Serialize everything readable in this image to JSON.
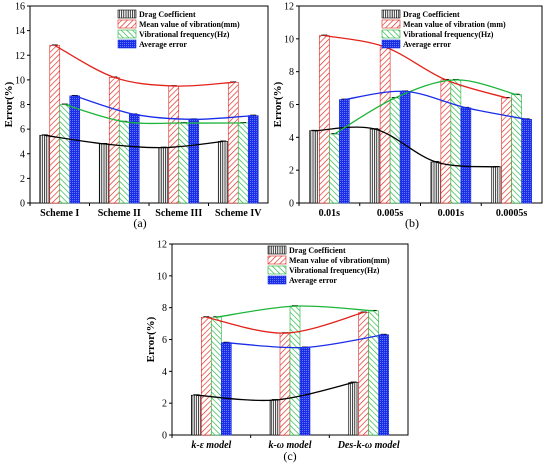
{
  "colors": {
    "drag": "#000000",
    "mean": "#e2231a",
    "freq": "#1db53a",
    "avg": "#1a2ee8",
    "drag_trend": "#000000",
    "mean_trend": "#e2231a",
    "freq_trend": "#1db53a",
    "avg_trend": "#1a2ee8"
  },
  "chart_data": [
    {
      "type": "bar",
      "panel": "a",
      "panel_label": "(a)",
      "ylabel": "Error(%)",
      "ylim": [
        0,
        16
      ],
      "yticks": [
        "0",
        "2",
        "4",
        "6",
        "8",
        "10",
        "12",
        "14",
        "16"
      ],
      "categories": [
        "Scheme I",
        "Scheme II",
        "Scheme III",
        "Scheme IV"
      ],
      "legend_placement": "top-right",
      "series": [
        {
          "name": "Drag Coefficient",
          "values": [
            5.5,
            4.8,
            4.5,
            5.0
          ]
        },
        {
          "name": "Mean value of vibration(mm)",
          "values": [
            12.8,
            10.2,
            9.5,
            9.8
          ]
        },
        {
          "name": "Vibrational frequency(Hz)",
          "values": [
            8.0,
            6.6,
            6.5,
            6.5
          ]
        },
        {
          "name": "Average error",
          "values": [
            8.7,
            7.2,
            6.8,
            7.1
          ]
        }
      ]
    },
    {
      "type": "bar",
      "panel": "b",
      "panel_label": "(b)",
      "ylabel": "Error(%)",
      "ylim": [
        0,
        12
      ],
      "yticks": [
        "0",
        "2",
        "4",
        "6",
        "8",
        "10",
        "12"
      ],
      "categories": [
        "0.01s",
        "0.005s",
        "0.001s",
        "0.0005s"
      ],
      "legend_placement": "top-right",
      "series": [
        {
          "name": "Drag Coefficient",
          "values": [
            4.4,
            4.5,
            2.5,
            2.2
          ]
        },
        {
          "name": "Mean value of vibration (mm)",
          "values": [
            10.2,
            9.5,
            7.5,
            6.4
          ]
        },
        {
          "name": "Vibrational frequency(Hz)",
          "values": [
            4.2,
            6.4,
            7.5,
            6.6
          ]
        },
        {
          "name": "Average error",
          "values": [
            6.3,
            6.8,
            5.8,
            5.1
          ]
        }
      ]
    },
    {
      "type": "bar",
      "panel": "c",
      "panel_label": "(c)",
      "ylabel": "Error(%)",
      "ylim": [
        0,
        12
      ],
      "yticks": [
        "0",
        "2",
        "4",
        "6",
        "8",
        "10",
        "12"
      ],
      "categories": [
        "k-ε model",
        "k-ω model",
        "Des-k-ω model"
      ],
      "legend_placement": "top-right",
      "series": [
        {
          "name": "Drag Coefficient",
          "values": [
            2.5,
            2.2,
            3.3
          ]
        },
        {
          "name": "Mean value of vibration(mm)",
          "values": [
            7.4,
            6.4,
            7.7
          ]
        },
        {
          "name": "Vibrational frequency(Hz)",
          "values": [
            7.4,
            8.1,
            7.8
          ]
        },
        {
          "name": "Average error",
          "values": [
            5.8,
            5.5,
            6.3
          ]
        }
      ]
    }
  ]
}
